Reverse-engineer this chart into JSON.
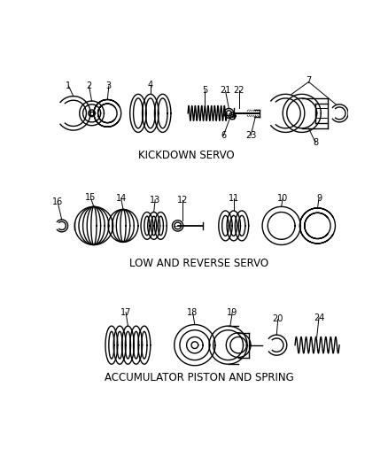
{
  "background_color": "#ffffff",
  "line_color": "#000000",
  "section1_label": "KICKDOWN SERVO",
  "section2_label": "LOW AND REVERSE SERVO",
  "section3_label": "ACCUMULATOR PISTON AND SPRING",
  "fig_width": 4.38,
  "fig_height": 5.33,
  "dpi": 100
}
